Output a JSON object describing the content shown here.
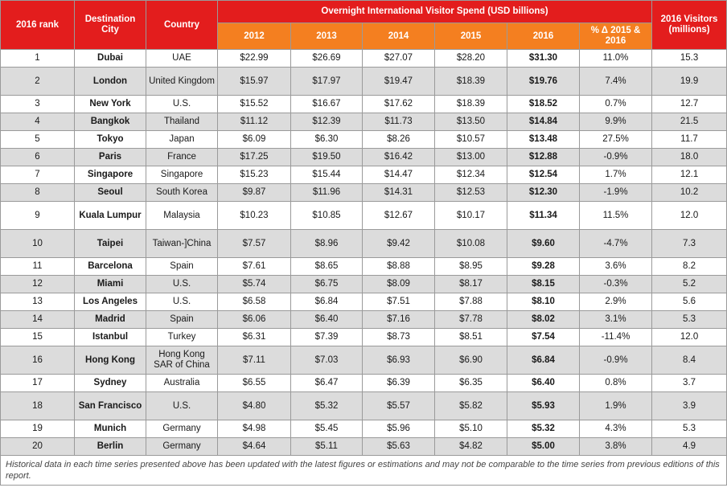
{
  "headers": {
    "rank": "2016 rank",
    "city": "Destination City",
    "country": "Country",
    "spend_group": "Overnight International Visitor Spend (USD billions)",
    "years": [
      "2012",
      "2013",
      "2014",
      "2015",
      "2016"
    ],
    "change": "% Δ 2015 & 2016",
    "visitors": "2016 Visitors (millions)"
  },
  "rows": [
    {
      "rank": "1",
      "city": "Dubai",
      "country": "UAE",
      "y2012": "$22.99",
      "y2013": "$26.69",
      "y2014": "$27.07",
      "y2015": "$28.20",
      "y2016": "$31.30",
      "change": "11.0%",
      "visitors": "15.3"
    },
    {
      "rank": "2",
      "city": "London",
      "country": "United Kingdom",
      "y2012": "$15.97",
      "y2013": "$17.97",
      "y2014": "$19.47",
      "y2015": "$18.39",
      "y2016": "$19.76",
      "change": "7.4%",
      "visitors": "19.9"
    },
    {
      "rank": "3",
      "city": "New York",
      "country": "U.S.",
      "y2012": "$15.52",
      "y2013": "$16.67",
      "y2014": "$17.62",
      "y2015": "$18.39",
      "y2016": "$18.52",
      "change": "0.7%",
      "visitors": "12.7"
    },
    {
      "rank": "4",
      "city": "Bangkok",
      "country": "Thailand",
      "y2012": "$11.12",
      "y2013": "$12.39",
      "y2014": "$11.73",
      "y2015": "$13.50",
      "y2016": "$14.84",
      "change": "9.9%",
      "visitors": "21.5"
    },
    {
      "rank": "5",
      "city": "Tokyo",
      "country": "Japan",
      "y2012": "$6.09",
      "y2013": "$6.30",
      "y2014": "$8.26",
      "y2015": "$10.57",
      "y2016": "$13.48",
      "change": "27.5%",
      "visitors": "11.7"
    },
    {
      "rank": "6",
      "city": "Paris",
      "country": "France",
      "y2012": "$17.25",
      "y2013": "$19.50",
      "y2014": "$16.42",
      "y2015": "$13.00",
      "y2016": "$12.88",
      "change": "-0.9%",
      "visitors": "18.0"
    },
    {
      "rank": "7",
      "city": "Singapore",
      "country": "Singapore",
      "y2012": "$15.23",
      "y2013": "$15.44",
      "y2014": "$14.47",
      "y2015": "$12.34",
      "y2016": "$12.54",
      "change": "1.7%",
      "visitors": "12.1"
    },
    {
      "rank": "8",
      "city": "Seoul",
      "country": "South Korea",
      "y2012": "$9.87",
      "y2013": "$11.96",
      "y2014": "$14.31",
      "y2015": "$12.53",
      "y2016": "$12.30",
      "change": "-1.9%",
      "visitors": "10.2"
    },
    {
      "rank": "9",
      "city": "Kuala Lumpur",
      "country": "Malaysia",
      "y2012": "$10.23",
      "y2013": "$10.85",
      "y2014": "$12.67",
      "y2015": "$10.17",
      "y2016": "$11.34",
      "change": "11.5%",
      "visitors": "12.0"
    },
    {
      "rank": "10",
      "city": "Taipei",
      "country": "Taiwan-]China",
      "y2012": "$7.57",
      "y2013": "$8.96",
      "y2014": "$9.42",
      "y2015": "$10.08",
      "y2016": "$9.60",
      "change": "-4.7%",
      "visitors": "7.3"
    },
    {
      "rank": "11",
      "city": "Barcelona",
      "country": "Spain",
      "y2012": "$7.61",
      "y2013": "$8.65",
      "y2014": "$8.88",
      "y2015": "$8.95",
      "y2016": "$9.28",
      "change": "3.6%",
      "visitors": "8.2"
    },
    {
      "rank": "12",
      "city": "Miami",
      "country": "U.S.",
      "y2012": "$5.74",
      "y2013": "$6.75",
      "y2014": "$8.09",
      "y2015": "$8.17",
      "y2016": "$8.15",
      "change": "-0.3%",
      "visitors": "5.2"
    },
    {
      "rank": "13",
      "city": "Los Angeles",
      "country": "U.S.",
      "y2012": "$6.58",
      "y2013": "$6.84",
      "y2014": "$7.51",
      "y2015": "$7.88",
      "y2016": "$8.10",
      "change": "2.9%",
      "visitors": "5.6"
    },
    {
      "rank": "14",
      "city": "Madrid",
      "country": "Spain",
      "y2012": "$6.06",
      "y2013": "$6.40",
      "y2014": "$7.16",
      "y2015": "$7.78",
      "y2016": "$8.02",
      "change": "3.1%",
      "visitors": "5.3"
    },
    {
      "rank": "15",
      "city": "Istanbul",
      "country": "Turkey",
      "y2012": "$6.31",
      "y2013": "$7.39",
      "y2014": "$8.73",
      "y2015": "$8.51",
      "y2016": "$7.54",
      "change": "-11.4%",
      "visitors": "12.0"
    },
    {
      "rank": "16",
      "city": "Hong Kong",
      "country": "Hong Kong SAR of China",
      "y2012": "$7.11",
      "y2013": "$7.03",
      "y2014": "$6.93",
      "y2015": "$6.90",
      "y2016": "$6.84",
      "change": "-0.9%",
      "visitors": "8.4"
    },
    {
      "rank": "17",
      "city": "Sydney",
      "country": "Australia",
      "y2012": "$6.55",
      "y2013": "$6.47",
      "y2014": "$6.39",
      "y2015": "$6.35",
      "y2016": "$6.40",
      "change": "0.8%",
      "visitors": "3.7"
    },
    {
      "rank": "18",
      "city": "San Francisco",
      "country": "U.S.",
      "y2012": "$4.80",
      "y2013": "$5.32",
      "y2014": "$5.57",
      "y2015": "$5.82",
      "y2016": "$5.93",
      "change": "1.9%",
      "visitors": "3.9"
    },
    {
      "rank": "19",
      "city": "Munich",
      "country": "Germany",
      "y2012": "$4.98",
      "y2013": "$5.45",
      "y2014": "$5.96",
      "y2015": "$5.10",
      "y2016": "$5.32",
      "change": "4.3%",
      "visitors": "5.3"
    },
    {
      "rank": "20",
      "city": "Berlin",
      "country": "Germany",
      "y2012": "$4.64",
      "y2013": "$5.11",
      "y2014": "$5.63",
      "y2015": "$4.82",
      "y2016": "$5.00",
      "change": "3.8%",
      "visitors": "4.9"
    }
  ],
  "footnote": "Historical data in each time series presented above has been updated with the latest figures or estimations and may not be comparable to the time series from previous editions of this report."
}
